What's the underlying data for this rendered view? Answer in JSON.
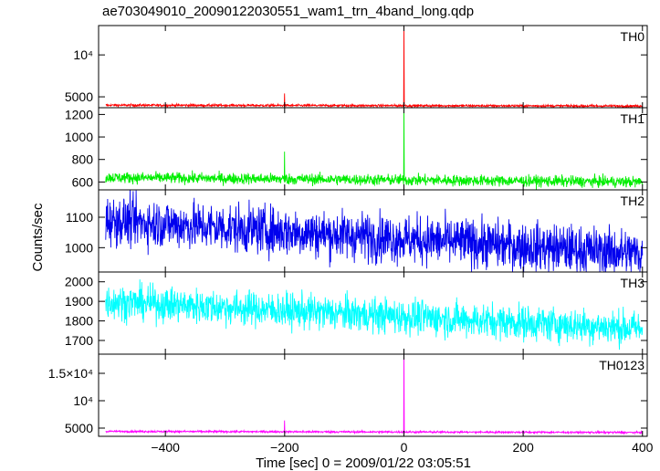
{
  "title": "ae703049010_20090122030551_wam1_trn_4band_long.qdp",
  "chart_data": {
    "type": "line",
    "title": "ae703049010_20090122030551_wam1_trn_4band_long.qdp",
    "xlabel": "Time [sec] 0 = 2009/01/22 03:05:51",
    "ylabel": "Counts/sec",
    "xlim": [
      -512,
      408
    ],
    "xticks": [
      -400,
      -200,
      0,
      200,
      400
    ],
    "xtick_labels": [
      "−400",
      "−200",
      "0",
      "200",
      "400"
    ],
    "grid": false,
    "legend": "none",
    "panels": [
      {
        "name": "TH0",
        "color": "#ff0000",
        "ylim": [
          3700,
          13500
        ],
        "yticks": [
          5000,
          10000
        ],
        "ytick_labels": [
          "5000",
          "10⁴"
        ],
        "baseline": 4000,
        "baseline_end": 3900,
        "noise": 70,
        "spikes": [
          {
            "x": -200,
            "y": 5400
          },
          {
            "x": 0,
            "y": 13500
          }
        ]
      },
      {
        "name": "TH1",
        "color": "#00ee00",
        "ylim": [
          530,
          1260
        ],
        "yticks": [
          600,
          800,
          1000,
          1200
        ],
        "ytick_labels": [
          "600",
          "800",
          "1000",
          "1200"
        ],
        "baseline": 640,
        "baseline_end": 600,
        "noise": 25,
        "spikes": [
          {
            "x": -200,
            "y": 870
          },
          {
            "x": 0,
            "y": 1260
          }
        ]
      },
      {
        "name": "TH2",
        "color": "#0000ee",
        "ylim": [
          920,
          1190
        ],
        "yticks": [
          1000,
          1100
        ],
        "ytick_labels": [
          "1000",
          "1100"
        ],
        "baseline": 1090,
        "baseline_end": 980,
        "noise": 40,
        "spikes": []
      },
      {
        "name": "TH3",
        "color": "#00ffff",
        "ylim": [
          1630,
          2050
        ],
        "yticks": [
          1700,
          1800,
          1900,
          2000
        ],
        "ytick_labels": [
          "1700",
          "1800",
          "1900",
          "2000"
        ],
        "baseline": 1900,
        "baseline_end": 1760,
        "noise": 45,
        "spikes": []
      },
      {
        "name": "TH0123",
        "color": "#ff00ff",
        "ylim": [
          3500,
          18500
        ],
        "yticks": [
          5000,
          10000,
          15000
        ],
        "ytick_labels": [
          "5000",
          "10⁴",
          "1.5×10⁴"
        ],
        "baseline": 4400,
        "baseline_end": 4200,
        "noise": 90,
        "spikes": [
          {
            "x": -200,
            "y": 6400
          },
          {
            "x": 0,
            "y": 18500
          }
        ]
      }
    ]
  }
}
